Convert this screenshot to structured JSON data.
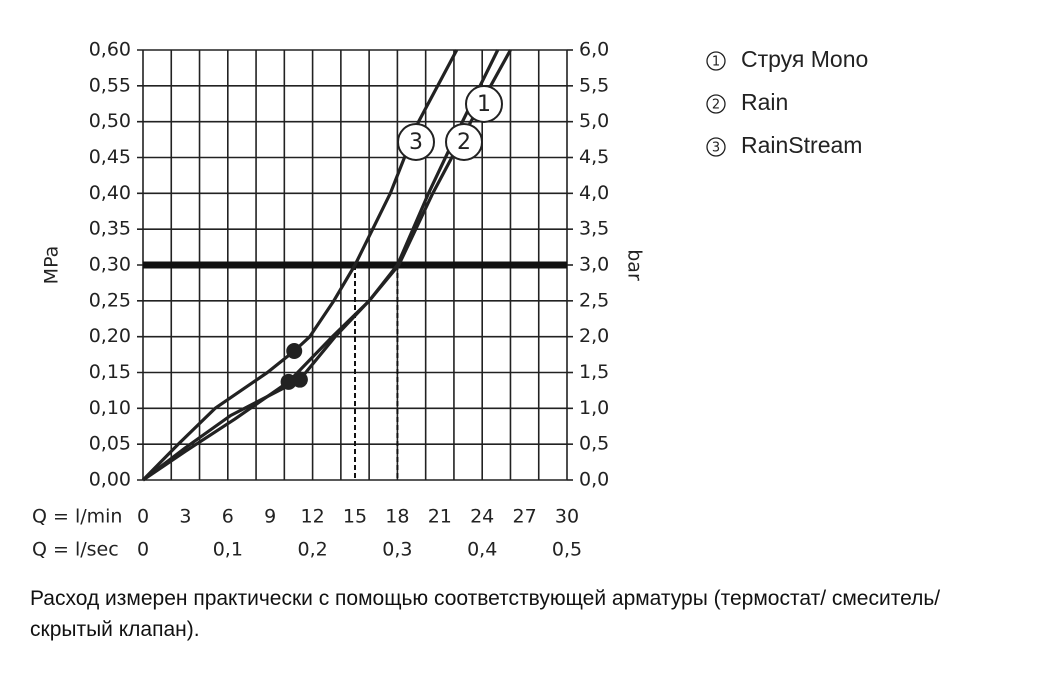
{
  "chart_data": {
    "type": "line",
    "ylabel": "MPa",
    "y2label": "bar",
    "xlabel": "Q = l/min",
    "x2label": "Q = l/sec",
    "xlim": [
      0,
      30
    ],
    "xticks": [
      0,
      3,
      6,
      9,
      12,
      15,
      18,
      21,
      24,
      27,
      30
    ],
    "xgrid": [
      0,
      2,
      4,
      6,
      8,
      10,
      12,
      14,
      16,
      18,
      20,
      22,
      24,
      26,
      28,
      30
    ],
    "x2lim": [
      0,
      0.5
    ],
    "x2ticks": [
      {
        "value": 0,
        "label": "0"
      },
      {
        "value": 0.1,
        "label": "0,1"
      },
      {
        "value": 0.2,
        "label": "0,2"
      },
      {
        "value": 0.3,
        "label": "0,3"
      },
      {
        "value": 0.4,
        "label": "0,4"
      },
      {
        "value": 0.5,
        "label": "0,5"
      }
    ],
    "ylim": [
      0,
      0.6
    ],
    "yticks": [
      {
        "value": 0,
        "label": "0,00"
      },
      {
        "value": 0.05,
        "label": "0,05"
      },
      {
        "value": 0.1,
        "label": "0,10"
      },
      {
        "value": 0.15,
        "label": "0,15"
      },
      {
        "value": 0.2,
        "label": "0,20"
      },
      {
        "value": 0.25,
        "label": "0,25"
      },
      {
        "value": 0.3,
        "label": "0,30"
      },
      {
        "value": 0.35,
        "label": "0,35"
      },
      {
        "value": 0.4,
        "label": "0,40"
      },
      {
        "value": 0.45,
        "label": "0,45"
      },
      {
        "value": 0.5,
        "label": "0,50"
      },
      {
        "value": 0.55,
        "label": "0,55"
      },
      {
        "value": 0.6,
        "label": "0,60"
      }
    ],
    "y2lim": [
      0,
      6
    ],
    "y2ticks": [
      {
        "value": 0,
        "label": "0,0"
      },
      {
        "value": 0.5,
        "label": "0,5"
      },
      {
        "value": 1,
        "label": "1,0"
      },
      {
        "value": 1.5,
        "label": "1,5"
      },
      {
        "value": 2,
        "label": "2,0"
      },
      {
        "value": 2.5,
        "label": "2,5"
      },
      {
        "value": 3,
        "label": "3,0"
      },
      {
        "value": 3.5,
        "label": "3,5"
      },
      {
        "value": 4,
        "label": "4,0"
      },
      {
        "value": 4.5,
        "label": "4,5"
      },
      {
        "value": 5,
        "label": "5,0"
      },
      {
        "value": 5.5,
        "label": "5,5"
      },
      {
        "value": 6,
        "label": "6,0"
      }
    ],
    "threshold": 0.3,
    "drops": [
      {
        "x": 15,
        "y": 0.3
      },
      {
        "x": 18,
        "y": 0.3
      }
    ],
    "series": [
      {
        "label": "1",
        "name": "Струя Mono",
        "color": "#222",
        "x": [
          0,
          3,
          6.5,
          10.3,
          13.4,
          16,
          18.1,
          20.5,
          23.2,
          26
        ],
        "values": [
          0,
          0.04,
          0.085,
          0.137,
          0.2,
          0.25,
          0.3,
          0.4,
          0.5,
          0.6
        ],
        "marker": {
          "x": 10.3,
          "y": 0.137
        }
      },
      {
        "label": "2",
        "name": "Rain",
        "color": "#222",
        "x": [
          0,
          3,
          6.2,
          11.1,
          13.6,
          16,
          18,
          20.2,
          22.6,
          25.1
        ],
        "values": [
          0,
          0.045,
          0.09,
          0.14,
          0.2,
          0.25,
          0.3,
          0.4,
          0.5,
          0.6
        ],
        "marker": {
          "x": 11.1,
          "y": 0.14
        }
      },
      {
        "label": "3",
        "name": "RainStream",
        "color": "#222",
        "x": [
          0,
          2.5,
          5.1,
          8.8,
          10.7,
          11.8,
          13.5,
          15,
          17.5,
          19.5,
          22.2
        ],
        "values": [
          0,
          0.05,
          0.1,
          0.15,
          0.18,
          0.2,
          0.25,
          0.3,
          0.4,
          0.5,
          0.6
        ],
        "marker": {
          "x": 10.7,
          "y": 0.18
        }
      }
    ],
    "note": "Расход измерен практически с помощью соответствующей арматуры (термостат/ смеситель/скрытый клапан)."
  }
}
